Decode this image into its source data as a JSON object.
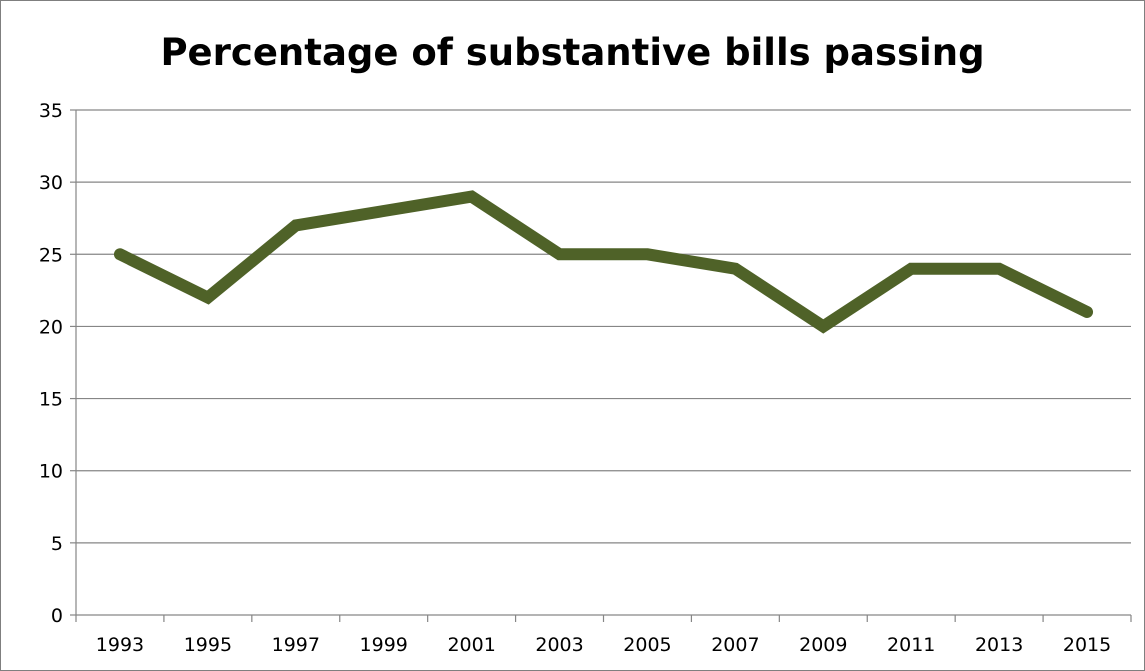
{
  "chart_data": {
    "type": "line",
    "title": "Percentage of substantive bills passing",
    "xlabel": "",
    "ylabel": "",
    "categories": [
      "1993",
      "1995",
      "1997",
      "1999",
      "2001",
      "2003",
      "2005",
      "2007",
      "2009",
      "2011",
      "2013",
      "2015"
    ],
    "series": [
      {
        "values": [
          25,
          22,
          27,
          28,
          29,
          25,
          25,
          24,
          20,
          24,
          24,
          21
        ]
      }
    ],
    "ylim": [
      0,
      35
    ],
    "yticks": [
      0,
      5,
      10,
      15,
      20,
      25,
      30,
      35
    ],
    "grid": true,
    "legend": "none",
    "line_color": "#4f6228"
  }
}
